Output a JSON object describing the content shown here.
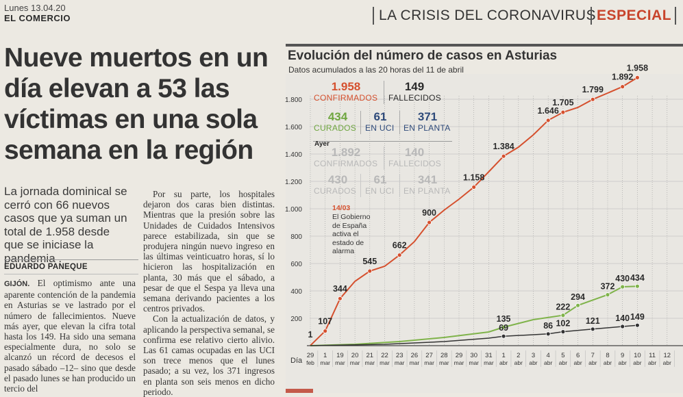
{
  "header": {
    "date": "Lunes 13.04.20",
    "newspaper": "EL COMERCIO",
    "section": "LA CRISIS DEL CORONAVIRUS",
    "special": "ESPECIAL"
  },
  "article": {
    "headline": "Nueve muertos en un día elevan a 53 las víctimas en una sola semana en la región",
    "lede": "La jornada dominical se cerró con 66 nuevos casos que ya suman un total de 1.958 desde que se iniciase la pandemia .",
    "byline": "EDUARDO PANEQUE",
    "dateline": "GIJÓN.",
    "col1": " El optimismo ante una aparente contención de la pandemia en Asturias se ve lastrado por el número de fallecimientos. Nueve más ayer, que elevan la cifra total hasta los 149. Ha sido una semana especialmente dura, no solo se alcanzó un récord de decesos el pasado sábado –12– sino que desde el pasado lunes se han producido un tercio del",
    "col2_p1": "Por su parte, los hospitales dejaron dos caras bien distintas. Mientras que la presión sobre las Unidades de Cuidados Intensivos parece estabilizada, sin que se produjera ningún nuevo ingreso en las últimas veinticuatro horas, sí lo hicieron las hospitalización en planta, 30 más que el sábado, a pesar de que el Sespa ya lleva una semana derivando pacientes a los centros privados.",
    "col2_p2": "Con la actualización de datos, y aplicando la perspectiva semanal, se confirma ese relativo cierto alivio. Las 61 camas ocupadas en las UCI son trece menos que el lunes pasado; a su vez, los 371 ingresos en planta son seis menos en dicho periodo."
  },
  "chart_panel": {
    "title": "Evolución del número de casos en Asturias",
    "subtitle": "Datos acumulados a las 20 horas del 11 de abril",
    "today": {
      "confirmados": {
        "value": "1.958",
        "label": "CONFIRMADOS"
      },
      "fallecidos": {
        "value": "149",
        "label": "FALLECIDOS"
      },
      "curados": {
        "value": "434",
        "label": "CURADOS"
      },
      "uci": {
        "value": "61",
        "label": "EN UCI"
      },
      "planta": {
        "value": "371",
        "label": "EN PLANTA"
      }
    },
    "ayer_label": "Ayer",
    "ayer": {
      "confirmados": {
        "value": "1.892",
        "label": "CONFIRMADOS"
      },
      "fallecidos": {
        "value": "140",
        "label": "FALLECIDOS"
      },
      "curados": {
        "value": "430",
        "label": "CURADOS"
      },
      "uci": {
        "value": "61",
        "label": "EN UCI"
      },
      "planta": {
        "value": "341",
        "label": "EN PLANTA"
      }
    },
    "annotation_date": "14/03",
    "annotation_text": "El Gobierno de España activa el estado de alarma"
  },
  "colors": {
    "confirmados": "#d5502e",
    "curados": "#7fb34a",
    "fallecidos": "#333333",
    "grid": "#b5b5b5"
  },
  "chart_data": {
    "type": "line",
    "title": "Evolución del número de casos en Asturias",
    "xlabel": "Día",
    "ylabel": "",
    "ylim": [
      0,
      1900
    ],
    "yticks": [
      200,
      400,
      600,
      800,
      "1.000",
      "1.200",
      "1.400",
      "1.600",
      "1.800"
    ],
    "x_days": [
      "29",
      "1",
      "19",
      "20",
      "21",
      "22",
      "23",
      "26",
      "27",
      "28",
      "29",
      "30",
      "31",
      "1",
      "2",
      "3",
      "4",
      "5",
      "6",
      "7",
      "8",
      "9",
      "10",
      "11",
      "12"
    ],
    "x_months": [
      "feb",
      "mar",
      "mar",
      "mar",
      "mar",
      "mar",
      "mar",
      "mar",
      "mar",
      "mar",
      "mar",
      "mar",
      "mar",
      "abr",
      "abr",
      "abr",
      "abr",
      "abr",
      "abr",
      "abr",
      "abr",
      "abr",
      "abr",
      "abr",
      "abr"
    ],
    "series": [
      {
        "name": "Confirmados",
        "points": [
          {
            "x": 0,
            "y": 1,
            "label": "1"
          },
          {
            "x": 1,
            "y": 107,
            "label": "107"
          },
          {
            "x": 2,
            "y": 344,
            "label": "344"
          },
          {
            "x": 3,
            "y": 470
          },
          {
            "x": 4,
            "y": 545,
            "label": "545"
          },
          {
            "x": 5,
            "y": 580
          },
          {
            "x": 6,
            "y": 662,
            "label": "662"
          },
          {
            "x": 7,
            "y": 760
          },
          {
            "x": 8,
            "y": 900,
            "label": "900"
          },
          {
            "x": 9,
            "y": 990
          },
          {
            "x": 10,
            "y": 1070
          },
          {
            "x": 11,
            "y": 1158,
            "label": "1.158"
          },
          {
            "x": 12,
            "y": 1270
          },
          {
            "x": 13,
            "y": 1384,
            "label": "1.384"
          },
          {
            "x": 14,
            "y": 1450
          },
          {
            "x": 15,
            "y": 1540
          },
          {
            "x": 16,
            "y": 1646,
            "label": "1.646"
          },
          {
            "x": 17,
            "y": 1705,
            "label": "1.705"
          },
          {
            "x": 18,
            "y": 1740
          },
          {
            "x": 19,
            "y": 1799,
            "label": "1.799"
          },
          {
            "x": 20,
            "y": 1845
          },
          {
            "x": 21,
            "y": 1892,
            "label": "1.892"
          },
          {
            "x": 22,
            "y": 1958,
            "label": "1.958"
          }
        ]
      },
      {
        "name": "Curados",
        "points": [
          {
            "x": 0,
            "y": 0
          },
          {
            "x": 3,
            "y": 10
          },
          {
            "x": 6,
            "y": 30
          },
          {
            "x": 9,
            "y": 60
          },
          {
            "x": 12,
            "y": 100
          },
          {
            "x": 13,
            "y": 135,
            "label": "135"
          },
          {
            "x": 15,
            "y": 190
          },
          {
            "x": 17,
            "y": 222,
            "label": "222"
          },
          {
            "x": 18,
            "y": 294,
            "label": "294"
          },
          {
            "x": 20,
            "y": 372,
            "label": "372"
          },
          {
            "x": 21,
            "y": 430,
            "label": "430"
          },
          {
            "x": 22,
            "y": 434,
            "label": "434"
          }
        ]
      },
      {
        "name": "Fallecidos",
        "points": [
          {
            "x": 0,
            "y": 0
          },
          {
            "x": 5,
            "y": 10
          },
          {
            "x": 9,
            "y": 30
          },
          {
            "x": 12,
            "y": 55
          },
          {
            "x": 13,
            "y": 69,
            "label": "69"
          },
          {
            "x": 15,
            "y": 80
          },
          {
            "x": 16,
            "y": 86,
            "label": "86"
          },
          {
            "x": 17,
            "y": 102,
            "label": "102"
          },
          {
            "x": 19,
            "y": 121,
            "label": "121"
          },
          {
            "x": 21,
            "y": 140,
            "label": "140"
          },
          {
            "x": 22,
            "y": 149,
            "label": "149"
          }
        ]
      }
    ]
  }
}
